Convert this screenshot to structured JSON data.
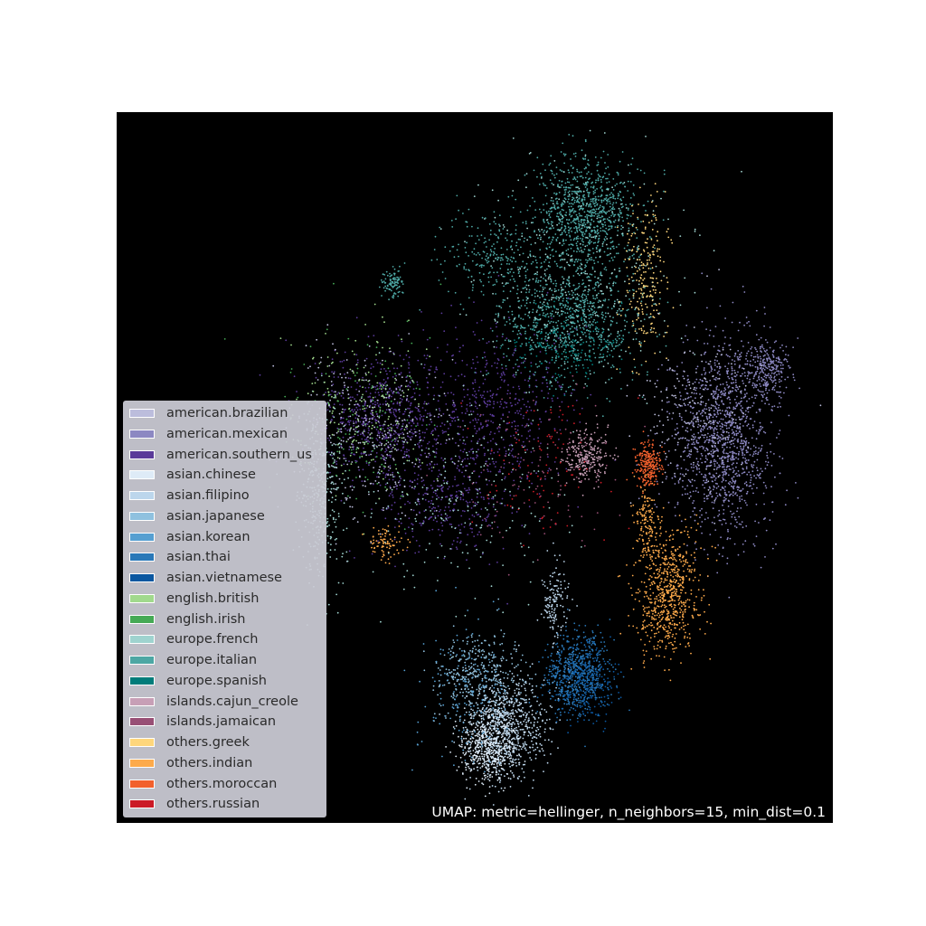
{
  "chart_data": {
    "type": "scatter",
    "title": "",
    "xlabel": "",
    "ylabel": "",
    "axes_visible": false,
    "background": "#000000",
    "legend_position": "lower-left",
    "annotation": "UMAP: metric=hellinger, n_neighbors=15, min_dist=0.1",
    "series": [
      {
        "name": "american.brazilian",
        "color": "#bcbddc"
      },
      {
        "name": "american.mexican",
        "color": "#8c88c2"
      },
      {
        "name": "american.southern_us",
        "color": "#5a3a99"
      },
      {
        "name": "asian.chinese",
        "color": "#deebf7"
      },
      {
        "name": "asian.filipino",
        "color": "#bcd6ec"
      },
      {
        "name": "asian.japanese",
        "color": "#8fc1df"
      },
      {
        "name": "asian.korean",
        "color": "#569fd1"
      },
      {
        "name": "asian.thai",
        "color": "#2a78b8"
      },
      {
        "name": "asian.vietnamese",
        "color": "#0b57a0"
      },
      {
        "name": "english.british",
        "color": "#a1d98d"
      },
      {
        "name": "english.irish",
        "color": "#45aa55"
      },
      {
        "name": "europe.french",
        "color": "#9fd3cf"
      },
      {
        "name": "europe.italian",
        "color": "#4da7a4"
      },
      {
        "name": "europe.spanish",
        "color": "#017c7a"
      },
      {
        "name": "islands.cajun_creole",
        "color": "#c79fb6"
      },
      {
        "name": "islands.jamaican",
        "color": "#984f75"
      },
      {
        "name": "others.greek",
        "color": "#fed67c"
      },
      {
        "name": "others.indian",
        "color": "#fdaa4b"
      },
      {
        "name": "others.moroccan",
        "color": "#f2602d"
      },
      {
        "name": "others.russian",
        "color": "#cb1a26"
      }
    ]
  }
}
